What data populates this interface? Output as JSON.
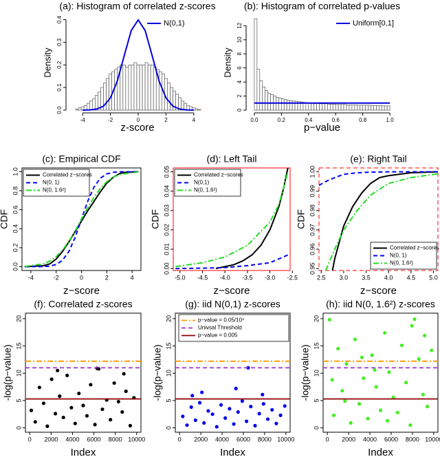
{
  "chart_data": [
    {
      "type": "histogram",
      "title": "(a): Histogram of correlated z-scores",
      "xlabel": "z-score",
      "ylabel": "Density",
      "bins": [
        -4.5,
        -4.3,
        -4.1,
        -3.9,
        -3.7,
        -3.5,
        -3.3,
        -3.1,
        -2.9,
        -2.7,
        -2.5,
        -2.3,
        -2.1,
        -1.9,
        -1.7,
        -1.5,
        -1.3,
        -1.1,
        -0.9,
        -0.7,
        -0.5,
        -0.3,
        -0.1,
        0.1,
        0.3,
        0.5,
        0.7,
        0.9,
        1.1,
        1.3,
        1.5,
        1.7,
        1.9,
        2.1,
        2.3,
        2.5,
        2.7,
        2.9,
        3.1,
        3.3,
        3.5,
        3.7,
        3.9,
        4.1,
        4.3,
        4.5
      ],
      "values": [
        0.005,
        0.01,
        0.015,
        0.02,
        0.03,
        0.04,
        0.05,
        0.065,
        0.08,
        0.1,
        0.12,
        0.14,
        0.16,
        0.17,
        0.18,
        0.19,
        0.2,
        0.2,
        0.19,
        0.2,
        0.2,
        0.21,
        0.2,
        0.2,
        0.2,
        0.21,
        0.2,
        0.2,
        0.19,
        0.18,
        0.17,
        0.16,
        0.14,
        0.12,
        0.1,
        0.085,
        0.07,
        0.055,
        0.04,
        0.03,
        0.02,
        0.015,
        0.01,
        0.006,
        0.003
      ],
      "color": "#ffffff",
      "edge_color": "#555555",
      "line": {
        "name": "N(0,1)",
        "color": "#0000dd",
        "x": [
          -4,
          -3.5,
          -3,
          -2.5,
          -2,
          -1.5,
          -1,
          -0.5,
          0,
          0.5,
          1,
          1.5,
          2,
          2.5,
          3,
          3.5,
          4
        ],
        "values": [
          0.0001,
          0.0009,
          0.0044,
          0.0175,
          0.054,
          0.1295,
          0.242,
          0.352,
          0.399,
          0.352,
          0.242,
          0.1295,
          0.054,
          0.0175,
          0.0044,
          0.0009,
          0.0001
        ]
      },
      "xlim": [
        -5,
        4.9
      ],
      "ylim": [
        0,
        0.42
      ],
      "xticks": [
        -4,
        -2,
        0,
        2,
        4
      ],
      "yticks": [
        {
          "value": 0,
          "label": "0.0"
        },
        0.1,
        0.2,
        0.3,
        0.4
      ],
      "legend": "top-right",
      "box": false
    },
    {
      "type": "histogram",
      "title": "(b): Histogram of correlated p-values",
      "xlabel": "p−value",
      "ylabel": "Density",
      "bins": [
        0,
        0.02,
        0.04,
        0.06,
        0.08,
        0.1,
        0.12,
        0.14,
        0.16,
        0.18,
        0.2,
        0.22,
        0.24,
        0.26,
        0.28,
        0.3,
        0.32,
        0.34,
        0.36,
        0.38,
        0.4,
        0.42,
        0.44,
        0.46,
        0.48,
        0.5,
        0.52,
        0.54,
        0.56,
        0.58,
        0.6,
        0.62,
        0.64,
        0.66,
        0.68,
        0.7,
        0.72,
        0.74,
        0.76,
        0.78,
        0.8,
        0.82,
        0.84,
        0.86,
        0.88,
        0.9,
        0.92,
        0.94,
        0.96,
        0.98,
        1
      ],
      "values": [
        13,
        5.8,
        4.2,
        3.3,
        2.8,
        2.4,
        2.2,
        2.0,
        1.8,
        1.7,
        1.6,
        1.5,
        1.4,
        1.35,
        1.3,
        1.25,
        1.2,
        1.15,
        1.1,
        1.05,
        1.0,
        1.0,
        0.95,
        0.95,
        0.9,
        0.9,
        0.9,
        0.85,
        0.85,
        0.85,
        0.8,
        0.8,
        0.8,
        0.8,
        0.75,
        0.75,
        0.75,
        0.75,
        0.7,
        0.7,
        0.7,
        0.7,
        0.7,
        0.65,
        0.65,
        0.65,
        0.65,
        0.6,
        0.6,
        0.6
      ],
      "color": "#ffffff",
      "edge_color": "#555555",
      "line": {
        "name": "Uniform[0,1]",
        "color": "#0000dd",
        "x": [
          0,
          1
        ],
        "values": [
          1,
          1
        ]
      },
      "xlim": [
        -0.04,
        1.04
      ],
      "ylim": [
        0,
        13.5
      ],
      "xticks": [
        {
          "value": 0,
          "label": "0.0"
        },
        0.2,
        0.4,
        0.6,
        0.8,
        {
          "value": 1,
          "label": "1.0"
        }
      ],
      "yticks": [
        0,
        2,
        4,
        6,
        8,
        10,
        12
      ],
      "legend": "top-right",
      "box": false
    },
    {
      "type": "line",
      "title": "(c): Empirical CDF",
      "xlabel": "z−score",
      "ylabel": "CDF",
      "series": [
        {
          "name": "Correlated z−scores",
          "color": "#000000",
          "dash": "solid",
          "x": [
            -4.5,
            -3,
            -2.5,
            -2,
            -1.5,
            -1,
            -0.5,
            0,
            0.5,
            1,
            1.5,
            2,
            2.5,
            3,
            3.5,
            4.5
          ],
          "values": [
            0,
            0.01,
            0.03,
            0.08,
            0.16,
            0.26,
            0.37,
            0.48,
            0.59,
            0.69,
            0.79,
            0.88,
            0.94,
            0.98,
            0.995,
            1
          ]
        },
        {
          "name": "N(0, 1)",
          "color": "#0000ff",
          "dash": "dashed",
          "x": [
            -4.5,
            -3,
            -2.5,
            -2,
            -1.5,
            -1,
            -0.5,
            0,
            0.5,
            1,
            1.5,
            2,
            2.5,
            3,
            4.5
          ],
          "values": [
            0,
            0.001,
            0.006,
            0.023,
            0.067,
            0.159,
            0.309,
            0.5,
            0.691,
            0.841,
            0.933,
            0.977,
            0.994,
            0.999,
            1
          ]
        },
        {
          "name": "N(0, 1.6²)",
          "color": "#22dd22",
          "dash": "dashdot",
          "x": [
            -4.5,
            -3,
            -2.5,
            -2,
            -1.5,
            -1,
            -0.5,
            0,
            0.5,
            1,
            1.5,
            2,
            2.5,
            3,
            4.5
          ],
          "values": [
            0.002,
            0.03,
            0.059,
            0.106,
            0.174,
            0.266,
            0.377,
            0.5,
            0.623,
            0.734,
            0.826,
            0.894,
            0.941,
            0.97,
            0.998
          ]
        }
      ],
      "xlim": [
        -4.7,
        4.7
      ],
      "ylim": [
        -0.04,
        1.04
      ],
      "xticks": [
        -4,
        -2,
        0,
        2,
        4
      ],
      "yticks": [
        {
          "value": 0,
          "label": "0.0"
        },
        0.2,
        0.4,
        0.6,
        0.8,
        {
          "value": 1,
          "label": "1.0"
        }
      ],
      "legend": "top-left",
      "box": true
    },
    {
      "type": "line",
      "title": "(d): Left Tail",
      "xlabel": "z−score",
      "ylabel": "CDF",
      "series": [
        {
          "name": "Correlated z−scores",
          "color": "#000000",
          "dash": "solid",
          "x": [
            -4.2,
            -4.0,
            -3.8,
            -3.6,
            -3.4,
            -3.2,
            -3.0,
            -2.8,
            -2.7,
            -2.6
          ],
          "values": [
            0,
            0.001,
            0.002,
            0.004,
            0.007,
            0.012,
            0.02,
            0.032,
            0.041,
            0.052
          ]
        },
        {
          "name": "N(0,1)",
          "color": "#0000ff",
          "dash": "dashed",
          "x": [
            -5.1,
            -4.5,
            -4,
            -3.5,
            -3,
            -2.8,
            -2.6
          ],
          "values": [
            0,
            0.0002,
            0.0005,
            0.0015,
            0.003,
            0.005,
            0.007
          ]
        },
        {
          "name": "N(0, 1.6²)",
          "color": "#22dd22",
          "dash": "dashdot",
          "x": [
            -5.1,
            -4.5,
            -4,
            -3.5,
            -3,
            -2.8,
            -2.6
          ],
          "values": [
            0.001,
            0.003,
            0.006,
            0.012,
            0.024,
            0.033,
            0.05
          ]
        }
      ],
      "xlim": [
        -5.15,
        -2.55
      ],
      "ylim": [
        -0.001,
        0.052
      ],
      "xticks": [
        {
          "value": -5,
          "label": "-5.0"
        },
        -4.5,
        {
          "value": -4,
          "label": "-4.0"
        },
        -3.5,
        {
          "value": -3,
          "label": "-3.0"
        },
        -2.5
      ],
      "yticks": [
        {
          "value": 0,
          "label": "0.00"
        },
        0.01,
        0.02,
        0.03,
        0.04,
        0.05
      ],
      "legend": "top-left",
      "box": true,
      "frame_color": "#ff0000"
    },
    {
      "type": "line",
      "title": "(e): Right Tail",
      "xlabel": "z−score",
      "ylabel": "CDF",
      "series": [
        {
          "name": "Correlated z−scores",
          "color": "#000000",
          "dash": "solid",
          "x": [
            2.75,
            2.8,
            3.0,
            3.2,
            3.4,
            3.6,
            3.8,
            4.0,
            4.5,
            5.1
          ],
          "values": [
            0.949,
            0.955,
            0.972,
            0.982,
            0.989,
            0.994,
            0.997,
            0.998,
            0.9995,
            1
          ]
        },
        {
          "name": "N(0, 1)",
          "color": "#0000ff",
          "dash": "dashed",
          "x": [
            2.45,
            2.6,
            2.8,
            3.0,
            3.3,
            3.6,
            4.0,
            5.1
          ],
          "values": [
            0.993,
            0.995,
            0.997,
            0.9987,
            0.9995,
            0.9998,
            1,
            1
          ]
        },
        {
          "name": "N(0, 1.6²)",
          "color": "#22dd22",
          "dash": "dashdot",
          "x": [
            2.6,
            2.8,
            3.0,
            3.3,
            3.6,
            4.0,
            4.5,
            5.1
          ],
          "values": [
            0.949,
            0.96,
            0.97,
            0.98,
            0.988,
            0.994,
            0.997,
            0.999
          ]
        }
      ],
      "xlim": [
        2.45,
        5.1
      ],
      "ylim": [
        0.949,
        1.002
      ],
      "xticks": [
        2.5,
        {
          "value": 3,
          "label": "3.0"
        },
        3.5,
        {
          "value": 4,
          "label": "4.0"
        },
        4.5,
        {
          "value": 5,
          "label": "5.0"
        }
      ],
      "yticks": [
        0.95,
        0.96,
        0.97,
        0.98,
        0.99,
        {
          "value": 1,
          "label": "1.00"
        }
      ],
      "legend": "bottom-right",
      "box": true,
      "frame_color": "#ff0000",
      "frame_dash": "dashed"
    },
    {
      "type": "scatter",
      "title": "(f): Correlated z-scores",
      "xlabel": "Index",
      "ylabel": "-log(p−value)",
      "series": [
        {
          "color": "#000000",
          "x": [
            150,
            520,
            910,
            1300,
            1650,
            2050,
            2400,
            2800,
            3150,
            3500,
            3900,
            4250,
            4600,
            5000,
            5350,
            5700,
            6100,
            6450,
            6800,
            7200,
            7550,
            7900,
            8300,
            8650,
            9000,
            9400,
            9750,
            2600,
            6300,
            8800
          ],
          "values": [
            3.2,
            1.1,
            7.4,
            4.5,
            0.3,
            8.9,
            2.6,
            5.8,
            1.9,
            9.6,
            3.7,
            0.8,
            6.3,
            4.1,
            2.2,
            7.9,
            0.6,
            10.8,
            3.4,
            5.1,
            1.5,
            8.2,
            4.8,
            2.9,
            6.7,
            0.4,
            5.5,
            10.5,
            10.9,
            9.9
          ]
        }
      ],
      "hlines": [
        {
          "value": 12.2,
          "color": "#ff9900",
          "dash": "dashdot"
        },
        {
          "value": 11,
          "color": "#9933cc",
          "dash": "dashed"
        },
        {
          "value": 5.3,
          "color": "#8b0000",
          "dash": "solid"
        }
      ],
      "xlim": [
        -400,
        10400
      ],
      "ylim": [
        -0.8,
        21
      ],
      "xticks": [
        0,
        2000,
        4000,
        6000,
        8000,
        10000
      ],
      "yticks": [
        0,
        5,
        10,
        15,
        20
      ],
      "box": true
    },
    {
      "type": "scatter",
      "title": "(g): iid N(0,1) z-scores",
      "xlabel": "Index",
      "ylabel": "-log(p−value)",
      "series": [
        {
          "color": "#0000ee",
          "x": [
            300,
            700,
            1100,
            1500,
            1900,
            2300,
            2700,
            3100,
            3500,
            3900,
            4300,
            4700,
            5100,
            5500,
            5900,
            6300,
            6700,
            7100,
            7500,
            7900,
            8300,
            8700,
            9100,
            9500,
            9900,
            2100,
            5300,
            6450,
            7800,
            1200
          ],
          "values": [
            2.1,
            0.5,
            3.8,
            1.4,
            4.6,
            0.9,
            3.1,
            2.5,
            0.2,
            4.2,
            1.8,
            3.5,
            0.7,
            2.9,
            4.9,
            1.2,
            3.9,
            0.4,
            2.6,
            4.4,
            1.6,
            3.3,
            0.8,
            2.3,
            4.0,
            6.5,
            7.2,
            11.0,
            6.1,
            5.9
          ]
        }
      ],
      "hlines": [
        {
          "name": "p−value = 0.05/10⁴",
          "value": 12.2,
          "color": "#ff9900",
          "dash": "dashdot"
        },
        {
          "name": "Univsal Threshold",
          "value": 11,
          "color": "#9933cc",
          "dash": "dashed"
        },
        {
          "name": "p−value = 0.005",
          "value": 5.3,
          "color": "#8b0000",
          "dash": "solid"
        }
      ],
      "xlim": [
        -400,
        10400
      ],
      "ylim": [
        -0.8,
        21
      ],
      "xticks": [
        0,
        2000,
        4000,
        6000,
        8000,
        10000
      ],
      "yticks": [
        0,
        5,
        10,
        15,
        20
      ],
      "legend": "top-right",
      "box": true
    },
    {
      "type": "scatter",
      "title": "(h): iid N(0, 1.6²) z-scores",
      "xlabel": "Index",
      "ylabel": "-log(p−value)",
      "series": [
        {
          "color": "#44ee22",
          "x": [
            200,
            600,
            1000,
            1400,
            1800,
            2200,
            2600,
            3000,
            3400,
            3800,
            4200,
            4600,
            5000,
            5400,
            5800,
            6200,
            6600,
            7000,
            7400,
            7800,
            8200,
            8600,
            9000,
            9400,
            9800,
            450,
            3250,
            5650,
            7950,
            9150,
            1650,
            4450
          ],
          "values": [
            19.8,
            2.3,
            14.5,
            6.8,
            11.7,
            0.9,
            16.2,
            4.4,
            9.1,
            1.7,
            13.3,
            7.5,
            3.2,
            17.4,
            10.2,
            5.6,
            2.8,
            15.1,
            8.3,
            0.5,
            19.9,
            12.6,
            6.1,
            3.9,
            14.2,
            8.8,
            12.9,
            1.3,
            18.7,
            16.9,
            4.9,
            10.6
          ]
        }
      ],
      "hlines": [
        {
          "value": 12.2,
          "color": "#ff9900",
          "dash": "dashdot"
        },
        {
          "value": 11,
          "color": "#9933cc",
          "dash": "dashed"
        },
        {
          "value": 5.3,
          "color": "#8b0000",
          "dash": "solid"
        }
      ],
      "xlim": [
        -400,
        10400
      ],
      "ylim": [
        -0.8,
        21
      ],
      "xticks": [
        0,
        2000,
        4000,
        6000,
        8000,
        10000
      ],
      "yticks": [
        0,
        5,
        10,
        15,
        20
      ],
      "box": true
    }
  ]
}
